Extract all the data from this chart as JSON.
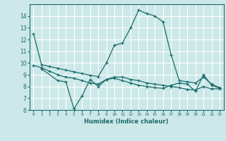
{
  "xlabel": "Humidex (Indice chaleur)",
  "ylabel": "",
  "bg_color": "#cce8e8",
  "grid_color": "#ffffff",
  "line_color": "#1a6b6b",
  "xlim": [
    -0.5,
    23.5
  ],
  "ylim": [
    6,
    15
  ],
  "yticks": [
    6,
    7,
    8,
    9,
    10,
    11,
    12,
    13,
    14
  ],
  "xticks": [
    0,
    1,
    2,
    3,
    4,
    5,
    6,
    7,
    8,
    9,
    10,
    11,
    12,
    13,
    14,
    15,
    16,
    17,
    18,
    19,
    20,
    21,
    22,
    23
  ],
  "line1_x": [
    0,
    1,
    2,
    3,
    4,
    5,
    6,
    7,
    8,
    9,
    10,
    11,
    12,
    13,
    14,
    15,
    16,
    17,
    18,
    19,
    20,
    21,
    22,
    23
  ],
  "line1_y": [
    12.5,
    9.85,
    9.7,
    9.55,
    9.4,
    9.25,
    9.1,
    8.95,
    8.85,
    10.0,
    11.5,
    11.7,
    13.0,
    14.5,
    14.2,
    14.0,
    13.5,
    10.7,
    8.5,
    8.4,
    8.3,
    8.8,
    8.2,
    7.9
  ],
  "line2_x": [
    0,
    1,
    2,
    3,
    4,
    5,
    6,
    7,
    8,
    9,
    10,
    11,
    12,
    13,
    14,
    15,
    16,
    17,
    18,
    19,
    20,
    21,
    22,
    23
  ],
  "line2_y": [
    9.8,
    9.6,
    9.3,
    9.0,
    8.8,
    8.7,
    8.5,
    8.3,
    8.2,
    8.6,
    8.8,
    8.8,
    8.6,
    8.5,
    8.3,
    8.2,
    8.1,
    8.0,
    7.9,
    7.75,
    7.7,
    8.0,
    7.8,
    7.8
  ],
  "line3_x": [
    1,
    3,
    4,
    5,
    6,
    7,
    8,
    9,
    10,
    11,
    12,
    13,
    14,
    15,
    16,
    17,
    18,
    19,
    20,
    21,
    22,
    23
  ],
  "line3_y": [
    9.5,
    8.5,
    8.4,
    6.1,
    7.2,
    8.6,
    8.0,
    8.6,
    8.7,
    8.5,
    8.3,
    8.1,
    8.0,
    7.9,
    7.85,
    8.1,
    8.3,
    8.2,
    7.6,
    9.0,
    8.1,
    7.85
  ]
}
